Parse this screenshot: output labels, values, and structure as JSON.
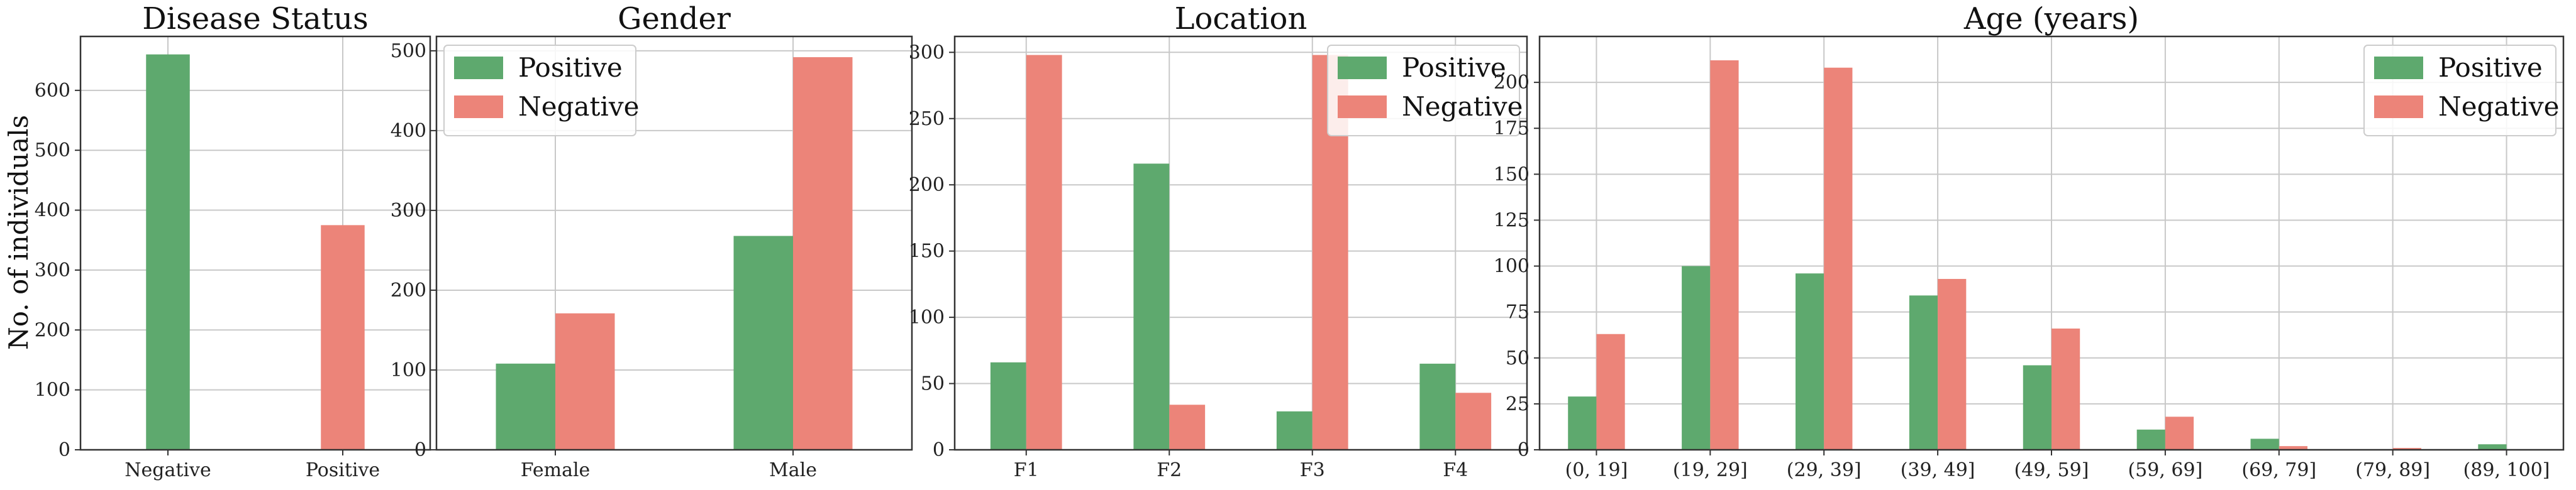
{
  "figure": {
    "ylabel": "No. of individuals"
  },
  "chart_data": [
    {
      "type": "bar",
      "title": "Disease Status",
      "categories": [
        "Negative",
        "Positive"
      ],
      "series": [
        {
          "values": [
            660,
            0
          ],
          "color": "#5ea96e"
        },
        {
          "values": [
            0,
            375
          ],
          "color": "#ec8479"
        }
      ],
      "ylim": [
        0,
        690
      ],
      "yticks": [
        0,
        100,
        200,
        300,
        400,
        500,
        600
      ],
      "grid": true,
      "legend": null
    },
    {
      "type": "bar",
      "title": "Gender",
      "categories": [
        "Female",
        "Male"
      ],
      "series": [
        {
          "name": "Positive",
          "values": [
            108,
            268
          ],
          "color": "#5ea96e"
        },
        {
          "name": "Negative",
          "values": [
            171,
            492
          ],
          "color": "#ec8479"
        }
      ],
      "ylim": [
        0,
        518
      ],
      "yticks": [
        0,
        100,
        200,
        300,
        400,
        500
      ],
      "grid": true,
      "legend": "upper-left"
    },
    {
      "type": "bar",
      "title": "Location",
      "categories": [
        "F1",
        "F2",
        "F3",
        "F4"
      ],
      "series": [
        {
          "name": "Positive",
          "values": [
            66,
            216,
            29,
            65
          ],
          "color": "#5ea96e"
        },
        {
          "name": "Negative",
          "values": [
            298,
            34,
            298,
            43
          ],
          "color": "#ec8479"
        }
      ],
      "ylim": [
        0,
        312
      ],
      "yticks": [
        0,
        50,
        100,
        150,
        200,
        250,
        300
      ],
      "grid": true,
      "legend": "upper-right"
    },
    {
      "type": "bar",
      "title": "Age (years)",
      "categories": [
        "(0, 19]",
        "(19, 29]",
        "(29, 39]",
        "(39, 49]",
        "(49, 59]",
        "(59, 69]",
        "(69, 79]",
        "(79, 89]",
        "(89, 100]"
      ],
      "series": [
        {
          "name": "Positive",
          "values": [
            29,
            100,
            96,
            84,
            46,
            11,
            6,
            0,
            3
          ],
          "color": "#5ea96e"
        },
        {
          "name": "Negative",
          "values": [
            63,
            212,
            208,
            93,
            66,
            18,
            2,
            1,
            0
          ],
          "color": "#ec8479"
        }
      ],
      "ylim": [
        0,
        225
      ],
      "yticks": [
        0,
        25,
        50,
        75,
        100,
        125,
        150,
        175,
        200
      ],
      "grid": true,
      "legend": "upper-right"
    }
  ]
}
